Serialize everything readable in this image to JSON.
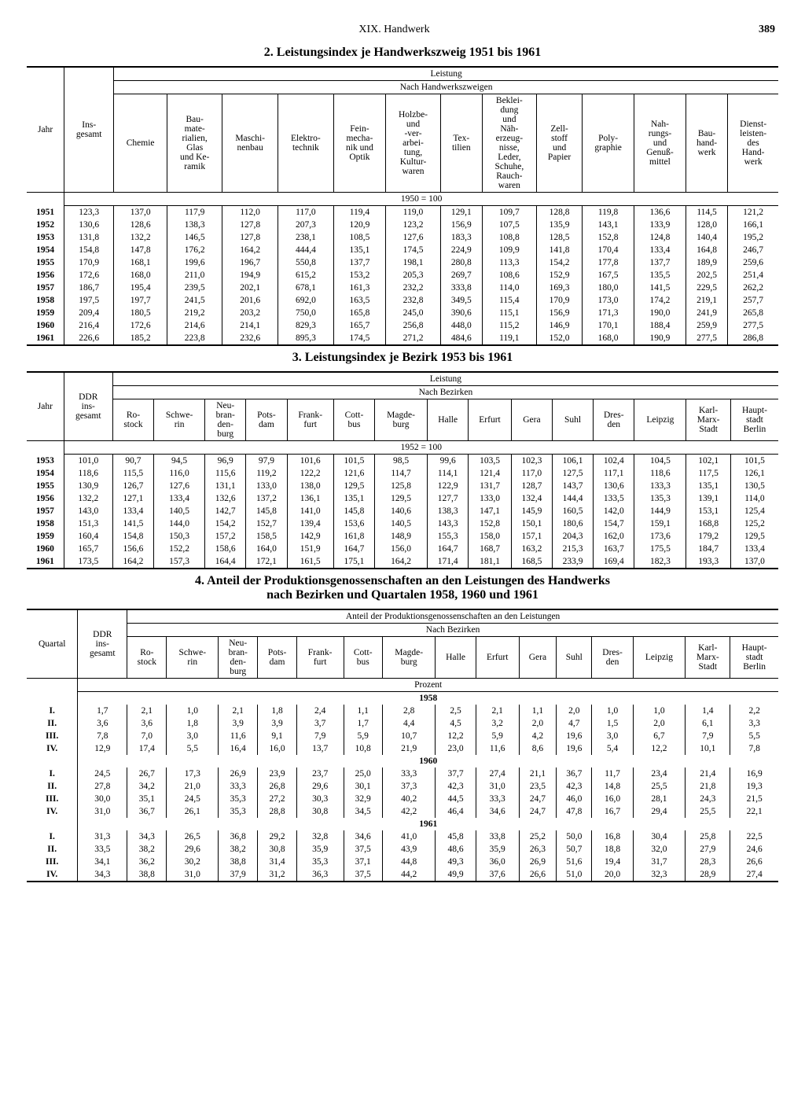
{
  "page": {
    "chapter": "XIX. Handwerk",
    "number": "389"
  },
  "table2": {
    "title": "2. Leistungsindex je Handwerkszweig 1951 bis 1961",
    "top": "Leistung",
    "sub": "Nach Handwerkszweigen",
    "base": "1950 = 100",
    "col_year": "Jahr",
    "col_total": "Ins-\ngesamt",
    "cols": [
      "Chemie",
      "Bau-\nmate-\nrialien,\nGlas\nund Ke-\nramik",
      "Maschi-\nnenbau",
      "Elektro-\ntechnik",
      "Fein-\nmecha-\nnik und\nOptik",
      "Holzbe-\nund\n-ver-\narbei-\ntung,\nKultur-\nwaren",
      "Tex-\ntilien",
      "Beklei-\ndung\nund\nNäh-\nerzeug-\nnisse,\nLeder,\nSchuhe,\nRauch-\nwaren",
      "Zell-\nstoff\nund\nPapier",
      "Poly-\ngraphie",
      "Nah-\nrungs-\nund\nGenuß-\nmittel",
      "Bau-\nhand-\nwerk",
      "Dienst-\nleisten-\ndes\nHand-\nwerk"
    ],
    "rows": [
      {
        "y": "1951",
        "t": "123,3",
        "v": [
          "137,0",
          "117,9",
          "112,0",
          "117,0",
          "119,4",
          "119,0",
          "129,1",
          "109,7",
          "128,8",
          "119,8",
          "136,6",
          "114,5",
          "121,2"
        ]
      },
      {
        "y": "1952",
        "t": "130,6",
        "v": [
          "128,6",
          "138,3",
          "127,8",
          "207,3",
          "120,9",
          "123,2",
          "156,9",
          "107,5",
          "135,9",
          "143,1",
          "133,9",
          "128,0",
          "166,1"
        ]
      },
      {
        "y": "1953",
        "t": "131,8",
        "v": [
          "132,2",
          "146,5",
          "127,8",
          "238,1",
          "108,5",
          "127,6",
          "183,3",
          "108,8",
          "128,5",
          "152,8",
          "124,8",
          "140,4",
          "195,2"
        ]
      },
      {
        "y": "1954",
        "t": "154,8",
        "v": [
          "147,8",
          "176,2",
          "164,2",
          "444,4",
          "135,1",
          "174,5",
          "224,9",
          "109,9",
          "141,8",
          "170,4",
          "133,4",
          "164,8",
          "246,7"
        ]
      },
      {
        "y": "1955",
        "t": "170,9",
        "v": [
          "168,1",
          "199,6",
          "196,7",
          "550,8",
          "137,7",
          "198,1",
          "280,8",
          "113,3",
          "154,2",
          "177,8",
          "137,7",
          "189,9",
          "259,6"
        ]
      },
      {
        "y": "1956",
        "t": "172,6",
        "v": [
          "168,0",
          "211,0",
          "194,9",
          "615,2",
          "153,2",
          "205,3",
          "269,7",
          "108,6",
          "152,9",
          "167,5",
          "135,5",
          "202,5",
          "251,4"
        ]
      },
      {
        "y": "1957",
        "t": "186,7",
        "v": [
          "195,4",
          "239,5",
          "202,1",
          "678,1",
          "161,3",
          "232,2",
          "333,8",
          "114,0",
          "169,3",
          "180,0",
          "141,5",
          "229,5",
          "262,2"
        ]
      },
      {
        "y": "1958",
        "t": "197,5",
        "v": [
          "197,7",
          "241,5",
          "201,6",
          "692,0",
          "163,5",
          "232,8",
          "349,5",
          "115,4",
          "170,9",
          "173,0",
          "174,2",
          "219,1",
          "257,7"
        ]
      },
      {
        "y": "1959",
        "t": "209,4",
        "v": [
          "180,5",
          "219,2",
          "203,2",
          "750,0",
          "165,8",
          "245,0",
          "390,6",
          "115,1",
          "156,9",
          "171,3",
          "190,0",
          "241,9",
          "265,8"
        ]
      },
      {
        "y": "1960",
        "t": "216,4",
        "v": [
          "172,6",
          "214,6",
          "214,1",
          "829,3",
          "165,7",
          "256,8",
          "448,0",
          "115,2",
          "146,9",
          "170,1",
          "188,4",
          "259,9",
          "277,5"
        ]
      },
      {
        "y": "1961",
        "t": "226,6",
        "v": [
          "185,2",
          "223,8",
          "232,6",
          "895,3",
          "174,5",
          "271,2",
          "484,6",
          "119,1",
          "152,0",
          "168,0",
          "190,9",
          "277,5",
          "286,8"
        ]
      }
    ]
  },
  "table3": {
    "title": "3. Leistungsindex je Bezirk 1953 bis 1961",
    "top": "Leistung",
    "sub": "Nach Bezirken",
    "base": "1952 = 100",
    "col_year": "Jahr",
    "col_total": "DDR\nins-\ngesamt",
    "cols": [
      "Ro-\nstock",
      "Schwe-\nrin",
      "Neu-\nbran-\nden-\nburg",
      "Pots-\ndam",
      "Frank-\nfurt",
      "Cott-\nbus",
      "Magde-\nburg",
      "Halle",
      "Erfurt",
      "Gera",
      "Suhl",
      "Dres-\nden",
      "Leipzig",
      "Karl-\nMarx-\nStadt",
      "Haupt-\nstadt\nBerlin"
    ],
    "rows": [
      {
        "y": "1953",
        "t": "101,0",
        "v": [
          "90,7",
          "94,5",
          "96,9",
          "97,9",
          "101,6",
          "101,5",
          "98,5",
          "99,6",
          "103,5",
          "102,3",
          "106,1",
          "102,4",
          "104,5",
          "102,1",
          "101,5"
        ]
      },
      {
        "y": "1954",
        "t": "118,6",
        "v": [
          "115,5",
          "116,0",
          "115,6",
          "119,2",
          "122,2",
          "121,6",
          "114,7",
          "114,1",
          "121,4",
          "117,0",
          "127,5",
          "117,1",
          "118,6",
          "117,5",
          "126,1"
        ]
      },
      {
        "y": "1955",
        "t": "130,9",
        "v": [
          "126,7",
          "127,6",
          "131,1",
          "133,0",
          "138,0",
          "129,5",
          "125,8",
          "122,9",
          "131,7",
          "128,7",
          "143,7",
          "130,6",
          "133,3",
          "135,1",
          "130,5"
        ]
      },
      {
        "y": "1956",
        "t": "132,2",
        "v": [
          "127,1",
          "133,4",
          "132,6",
          "137,2",
          "136,1",
          "135,1",
          "129,5",
          "127,7",
          "133,0",
          "132,4",
          "144,4",
          "133,5",
          "135,3",
          "139,1",
          "114,0"
        ]
      },
      {
        "y": "1957",
        "t": "143,0",
        "v": [
          "133,4",
          "140,5",
          "142,7",
          "145,8",
          "141,0",
          "145,8",
          "140,6",
          "138,3",
          "147,1",
          "145,9",
          "160,5",
          "142,0",
          "144,9",
          "153,1",
          "125,4"
        ]
      },
      {
        "y": "1958",
        "t": "151,3",
        "v": [
          "141,5",
          "144,0",
          "154,2",
          "152,7",
          "139,4",
          "153,6",
          "140,5",
          "143,3",
          "152,8",
          "150,1",
          "180,6",
          "154,7",
          "159,1",
          "168,8",
          "125,2"
        ]
      },
      {
        "y": "1959",
        "t": "160,4",
        "v": [
          "154,8",
          "150,3",
          "157,2",
          "158,5",
          "142,9",
          "161,8",
          "148,9",
          "155,3",
          "158,0",
          "157,1",
          "204,3",
          "162,0",
          "173,6",
          "179,2",
          "129,5"
        ]
      },
      {
        "y": "1960",
        "t": "165,7",
        "v": [
          "156,6",
          "152,2",
          "158,6",
          "164,0",
          "151,9",
          "164,7",
          "156,0",
          "164,7",
          "168,7",
          "163,2",
          "215,3",
          "163,7",
          "175,5",
          "184,7",
          "133,4"
        ]
      },
      {
        "y": "1961",
        "t": "173,5",
        "v": [
          "164,2",
          "157,3",
          "164,4",
          "172,1",
          "161,5",
          "175,1",
          "164,2",
          "171,4",
          "181,1",
          "168,5",
          "233,9",
          "169,4",
          "182,3",
          "193,3",
          "137,0"
        ]
      }
    ]
  },
  "table4": {
    "title": "4. Anteil der Produktionsgenossenschaften an den Leistungen des Handwerks\nnach Bezirken und Quartalen 1958, 1960 und 1961",
    "top": "Anteil der Produktionsgenossenschaften an den Leistungen",
    "sub": "Nach Bezirken",
    "unit": "Prozent",
    "col_q": "Quartal",
    "col_total": "DDR\nins-\ngesamt",
    "cols": [
      "Ro-\nstock",
      "Schwe-\nrin",
      "Neu-\nbran-\nden-\nburg",
      "Pots-\ndam",
      "Frank-\nfurt",
      "Cott-\nbus",
      "Magde-\nburg",
      "Halle",
      "Erfurt",
      "Gera",
      "Suhl",
      "Dres-\nden",
      "Leipzig",
      "Karl-\nMarx-\nStadt",
      "Haupt-\nstadt\nBerlin"
    ],
    "years": [
      {
        "label": "1958",
        "rows": [
          {
            "q": "I.",
            "t": "1,7",
            "v": [
              "2,1",
              "1,0",
              "2,1",
              "1,8",
              "2,4",
              "1,1",
              "2,8",
              "2,5",
              "2,1",
              "1,1",
              "2,0",
              "1,0",
              "1,0",
              "1,4",
              "2,2"
            ]
          },
          {
            "q": "II.",
            "t": "3,6",
            "v": [
              "3,6",
              "1,8",
              "3,9",
              "3,9",
              "3,7",
              "1,7",
              "4,4",
              "4,5",
              "3,2",
              "2,0",
              "4,7",
              "1,5",
              "2,0",
              "6,1",
              "3,3"
            ]
          },
          {
            "q": "III.",
            "t": "7,8",
            "v": [
              "7,0",
              "3,0",
              "11,6",
              "9,1",
              "7,9",
              "5,9",
              "10,7",
              "12,2",
              "5,9",
              "4,2",
              "19,6",
              "3,0",
              "6,7",
              "7,9",
              "5,5"
            ]
          },
          {
            "q": "IV.",
            "t": "12,9",
            "v": [
              "17,4",
              "5,5",
              "16,4",
              "16,0",
              "13,7",
              "10,8",
              "21,9",
              "23,0",
              "11,6",
              "8,6",
              "19,6",
              "5,4",
              "12,2",
              "10,1",
              "7,8"
            ]
          }
        ]
      },
      {
        "label": "1960",
        "rows": [
          {
            "q": "I.",
            "t": "24,5",
            "v": [
              "26,7",
              "17,3",
              "26,9",
              "23,9",
              "23,7",
              "25,0",
              "33,3",
              "37,7",
              "27,4",
              "21,1",
              "36,7",
              "11,7",
              "23,4",
              "21,4",
              "16,9"
            ]
          },
          {
            "q": "II.",
            "t": "27,8",
            "v": [
              "34,2",
              "21,0",
              "33,3",
              "26,8",
              "29,6",
              "30,1",
              "37,3",
              "42,3",
              "31,0",
              "23,5",
              "42,3",
              "14,8",
              "25,5",
              "21,8",
              "19,3"
            ]
          },
          {
            "q": "III.",
            "t": "30,0",
            "v": [
              "35,1",
              "24,5",
              "35,3",
              "27,2",
              "30,3",
              "32,9",
              "40,2",
              "44,5",
              "33,3",
              "24,7",
              "46,0",
              "16,0",
              "28,1",
              "24,3",
              "21,5"
            ]
          },
          {
            "q": "IV.",
            "t": "31,0",
            "v": [
              "36,7",
              "26,1",
              "35,3",
              "28,8",
              "30,8",
              "34,5",
              "42,2",
              "46,4",
              "34,6",
              "24,7",
              "47,8",
              "16,7",
              "29,4",
              "25,5",
              "22,1"
            ]
          }
        ]
      },
      {
        "label": "1961",
        "rows": [
          {
            "q": "I.",
            "t": "31,3",
            "v": [
              "34,3",
              "26,5",
              "36,8",
              "29,2",
              "32,8",
              "34,6",
              "41,0",
              "45,8",
              "33,8",
              "25,2",
              "50,0",
              "16,8",
              "30,4",
              "25,8",
              "22,5"
            ]
          },
          {
            "q": "II.",
            "t": "33,5",
            "v": [
              "38,2",
              "29,6",
              "38,2",
              "30,8",
              "35,9",
              "37,5",
              "43,9",
              "48,6",
              "35,9",
              "26,3",
              "50,7",
              "18,8",
              "32,0",
              "27,9",
              "24,6"
            ]
          },
          {
            "q": "III.",
            "t": "34,1",
            "v": [
              "36,2",
              "30,2",
              "38,8",
              "31,4",
              "35,3",
              "37,1",
              "44,8",
              "49,3",
              "36,0",
              "26,9",
              "51,6",
              "19,4",
              "31,7",
              "28,3",
              "26,6"
            ]
          },
          {
            "q": "IV.",
            "t": "34,3",
            "v": [
              "38,8",
              "31,0",
              "37,9",
              "31,2",
              "36,3",
              "37,5",
              "44,2",
              "49,9",
              "37,6",
              "26,6",
              "51,0",
              "20,0",
              "32,3",
              "28,9",
              "27,4"
            ]
          }
        ]
      }
    ]
  }
}
